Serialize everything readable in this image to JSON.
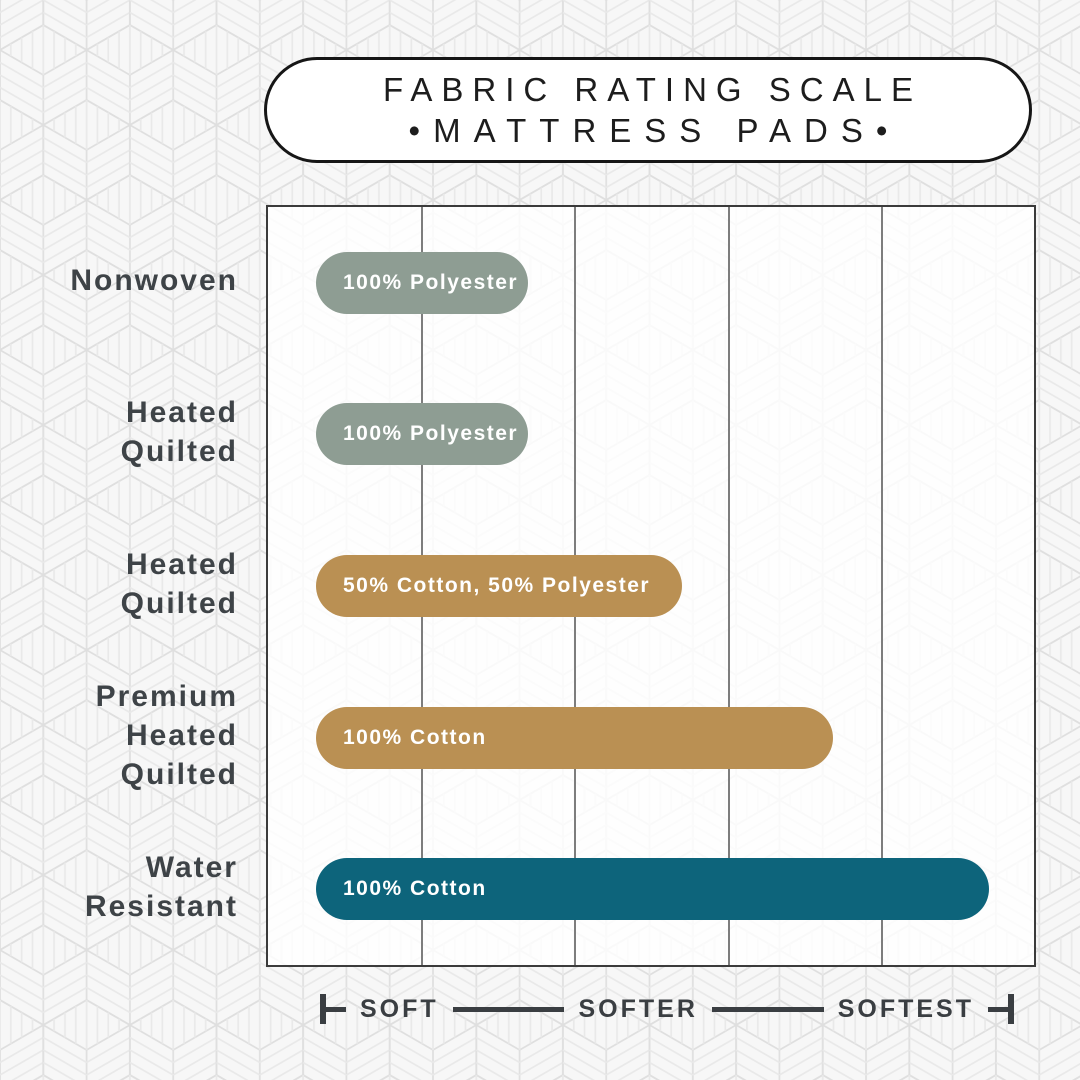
{
  "header": {
    "title_line1": "FABRIC RATING SCALE",
    "title_line2": "•MATTRESS PADS•"
  },
  "row_labels": [
    "Nonwoven",
    "Heated\nQuilted",
    "Heated\nQuilted",
    "Premium\nHeated\nQuilted",
    "Water\nResistant"
  ],
  "chart_data": {
    "type": "bar",
    "orientation": "horizontal",
    "title": "FABRIC RATING SCALE • MATTRESS PADS",
    "categories": [
      "Nonwoven",
      "Heated Quilted",
      "Heated Quilted",
      "Premium Heated Quilted",
      "Water Resistant"
    ],
    "bars": [
      {
        "category": "Nonwoven",
        "label": "100% Polyester",
        "softness_pct": 30,
        "length_pct": 27.7,
        "color": "#8E9D93"
      },
      {
        "category": "Heated Quilted",
        "label": "100% Polyester",
        "softness_pct": 30,
        "length_pct": 27.7,
        "color": "#8E9D93"
      },
      {
        "category": "Heated Quilted",
        "label": "50% Cotton, 50% Polyester",
        "softness_pct": 52,
        "length_pct": 47.8,
        "color": "#BA9053"
      },
      {
        "category": "Premium Heated Quilted",
        "label": "100% Cotton",
        "softness_pct": 74,
        "length_pct": 67.5,
        "color": "#BA9053"
      },
      {
        "category": "Water Resistant",
        "label": "100% Cotton",
        "softness_pct": 96,
        "length_pct": 87.9,
        "color": "#0D647B"
      }
    ],
    "x_axis": {
      "ticks": [
        "SOFT",
        "SOFTER",
        "SOFTEST"
      ],
      "scale": "qualitative softness, SOFT (left) to SOFTEST (right)",
      "range_pct": [
        0,
        100
      ]
    },
    "gridlines": 4,
    "legend": "none"
  },
  "colors": {
    "sage": "#8E9D93",
    "gold": "#BA9053",
    "teal": "#0D647B",
    "dark_text": "#3E4347",
    "pill_border": "#161616",
    "gridline": "#7d7d7d"
  }
}
